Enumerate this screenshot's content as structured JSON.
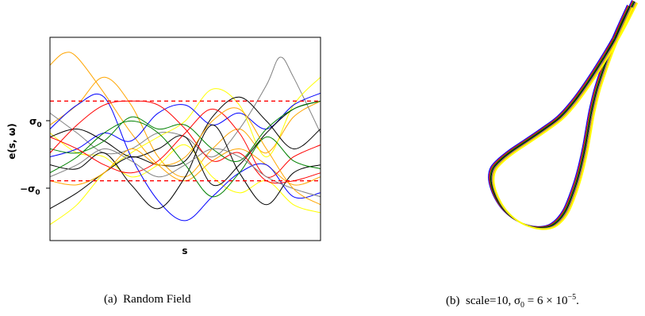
{
  "chart_data": [
    {
      "type": "line",
      "panel": "(a)",
      "caption": "(a)  Random Field",
      "xlabel": "s",
      "ylabel": "e(s, ω)",
      "xlim": [
        0,
        1
      ],
      "ylim": [
        -2.5,
        2.6
      ],
      "yticks": [
        {
          "value": 1,
          "label": "σ₀"
        },
        {
          "value": -1,
          "label": "−σ₀"
        }
      ],
      "xticks": [],
      "grid": false,
      "legend": "none",
      "reference_lines": [
        {
          "y": 1,
          "color": "#ff0000",
          "style": "dashed"
        },
        {
          "y": -1,
          "color": "#ff0000",
          "style": "dashed"
        }
      ],
      "series": [
        {
          "color": "#ffa500",
          "x": [
            0,
            0.05,
            0.1,
            0.2,
            0.3,
            0.4,
            0.5,
            0.6,
            0.7,
            0.8,
            0.9,
            1
          ],
          "y": [
            1.9,
            2.2,
            2.1,
            1.2,
            0.2,
            -0.6,
            -1.0,
            -0.5,
            -0.2,
            -0.6,
            -1.1,
            -0.9
          ]
        },
        {
          "color": "#ffa500",
          "x": [
            0,
            0.1,
            0.2,
            0.3,
            0.4,
            0.5,
            0.6,
            0.7,
            0.8,
            0.9,
            1
          ],
          "y": [
            0.4,
            0.9,
            1.6,
            0.9,
            -0.4,
            -0.9,
            -0.2,
            0.3,
            -0.3,
            0.6,
            1.0
          ]
        },
        {
          "color": "#808080",
          "x": [
            0,
            0.1,
            0.2,
            0.3,
            0.4,
            0.5,
            0.6,
            0.7,
            0.8,
            0.85,
            0.9,
            1
          ],
          "y": [
            0.7,
            0.2,
            -0.3,
            -0.2,
            0.2,
            0.1,
            -0.4,
            0.3,
            1.4,
            2.1,
            1.6,
            0.2
          ]
        },
        {
          "color": "#ffff00",
          "x": [
            0,
            0.1,
            0.2,
            0.3,
            0.4,
            0.5,
            0.6,
            0.7,
            0.8,
            0.9,
            1
          ],
          "y": [
            -2.1,
            -1.6,
            -0.8,
            -0.3,
            0.1,
            0.5,
            1.3,
            0.9,
            -0.4,
            0.9,
            1.6
          ]
        },
        {
          "color": "#ffff00",
          "x": [
            0,
            0.1,
            0.2,
            0.3,
            0.4,
            0.5,
            0.6,
            0.7,
            0.8,
            0.9,
            1
          ],
          "y": [
            0.2,
            -0.3,
            -0.4,
            -0.9,
            -0.6,
            -0.1,
            -0.9,
            -1.3,
            -1.0,
            -1.6,
            -1.8
          ]
        },
        {
          "color": "#0000ff",
          "x": [
            0,
            0.1,
            0.2,
            0.3,
            0.4,
            0.5,
            0.6,
            0.7,
            0.8,
            0.9,
            1
          ],
          "y": [
            0.3,
            0.9,
            1.1,
            -0.4,
            -1.5,
            -2.0,
            -1.4,
            -0.8,
            -0.6,
            -1.4,
            -1.3
          ]
        },
        {
          "color": "#0000ff",
          "x": [
            0,
            0.1,
            0.2,
            0.3,
            0.4,
            0.5,
            0.6,
            0.7,
            0.8,
            0.9,
            1
          ],
          "y": [
            -0.4,
            -0.2,
            0.2,
            0.0,
            0.7,
            0.9,
            0.4,
            0.7,
            0.3,
            0.9,
            1.2
          ]
        },
        {
          "color": "#000000",
          "x": [
            0,
            0.1,
            0.2,
            0.3,
            0.4,
            0.5,
            0.6,
            0.7,
            0.8,
            0.9,
            1
          ],
          "y": [
            -1.7,
            -1.3,
            -0.8,
            -0.4,
            -0.6,
            -0.5,
            0.6,
            1.1,
            0.5,
            -0.2,
            0.3
          ]
        },
        {
          "color": "#000000",
          "x": [
            0,
            0.1,
            0.2,
            0.3,
            0.4,
            0.5,
            0.6,
            0.7,
            0.8,
            0.9,
            1
          ],
          "y": [
            -0.6,
            -0.7,
            -0.3,
            -1.1,
            -1.7,
            -0.9,
            0.4,
            -0.8,
            -1.6,
            -0.8,
            -0.6
          ]
        },
        {
          "color": "#000000",
          "x": [
            0,
            0.1,
            0.2,
            0.3,
            0.4,
            0.5,
            0.6,
            0.7,
            0.8,
            0.9,
            1
          ],
          "y": [
            0.1,
            0.3,
            0.0,
            -0.4,
            -0.2,
            0.1,
            -1.1,
            -0.6,
            0.2,
            0.8,
            1.0
          ]
        },
        {
          "color": "#008000",
          "x": [
            0,
            0.1,
            0.2,
            0.3,
            0.4,
            0.5,
            0.6,
            0.7,
            0.8,
            0.9,
            1
          ],
          "y": [
            -0.8,
            -0.4,
            0.2,
            0.5,
            0.2,
            -0.6,
            -1.4,
            -0.8,
            0.1,
            -0.5,
            -0.7
          ]
        },
        {
          "color": "#008000",
          "x": [
            0,
            0.1,
            0.2,
            0.3,
            0.4,
            0.5,
            0.6,
            0.7,
            0.8,
            0.9,
            1
          ],
          "y": [
            -0.2,
            -0.3,
            0.0,
            0.6,
            0.3,
            0.4,
            -0.2,
            -0.5,
            0.3,
            0.8,
            1.0
          ]
        },
        {
          "color": "#ff0000",
          "x": [
            0,
            0.1,
            0.2,
            0.3,
            0.4,
            0.5,
            0.6,
            0.7,
            0.8,
            0.9,
            1
          ],
          "y": [
            -0.3,
            0.4,
            0.9,
            1.0,
            0.9,
            0.3,
            -0.5,
            -0.3,
            -1.0,
            -1.0,
            -0.8
          ]
        },
        {
          "color": "#ff0000",
          "x": [
            0,
            0.1,
            0.2,
            0.3,
            0.4,
            0.5,
            0.6,
            0.7,
            0.8,
            0.9,
            1
          ],
          "y": [
            0.1,
            -0.2,
            -0.6,
            -0.8,
            -0.5,
            0.2,
            0.8,
            0.2,
            -0.9,
            -0.4,
            -0.1
          ]
        },
        {
          "color": "#808080",
          "x": [
            0,
            0.1,
            0.2,
            0.3,
            0.4,
            0.5,
            0.6,
            0.7,
            0.8,
            0.9,
            1
          ],
          "y": [
            -0.9,
            -0.6,
            -0.2,
            -0.5,
            -0.9,
            -0.6,
            -0.2,
            -0.4,
            -0.9,
            -1.2,
            -1.4
          ]
        },
        {
          "color": "#ffa500",
          "x": [
            0,
            0.1,
            0.2,
            0.3,
            0.4,
            0.5,
            0.6,
            0.7,
            0.8,
            0.9,
            1
          ],
          "y": [
            -1.0,
            -1.1,
            -0.8,
            -0.2,
            -0.6,
            -0.4,
            0.5,
            0.8,
            -0.2,
            -1.2,
            -1.6
          ]
        }
      ]
    },
    {
      "type": "line",
      "panel": "(b)",
      "caption": "(b)  scale=10, σ₀ = 6 × 10⁻⁵.",
      "curve_colors": [
        "#0000ff",
        "#ff0000",
        "#008000",
        "#000000",
        "#808080",
        "#ffa500",
        "#ffff00"
      ],
      "axes": "none"
    }
  ],
  "captions": {
    "a_label": "(a)",
    "a_text": "Random Field",
    "b_label": "(b)",
    "b_text": "scale=10, σ",
    "b_sub": "0",
    "b_eq": " = 6 × 10",
    "b_sup": "−5",
    "b_end": "."
  },
  "axis_text": {
    "ylabel": "e(s, ω)",
    "xlabel": "s",
    "tick_pos_main": "σ",
    "tick_pos_sub": "0",
    "tick_neg_main": "−σ",
    "tick_neg_sub": "0"
  }
}
